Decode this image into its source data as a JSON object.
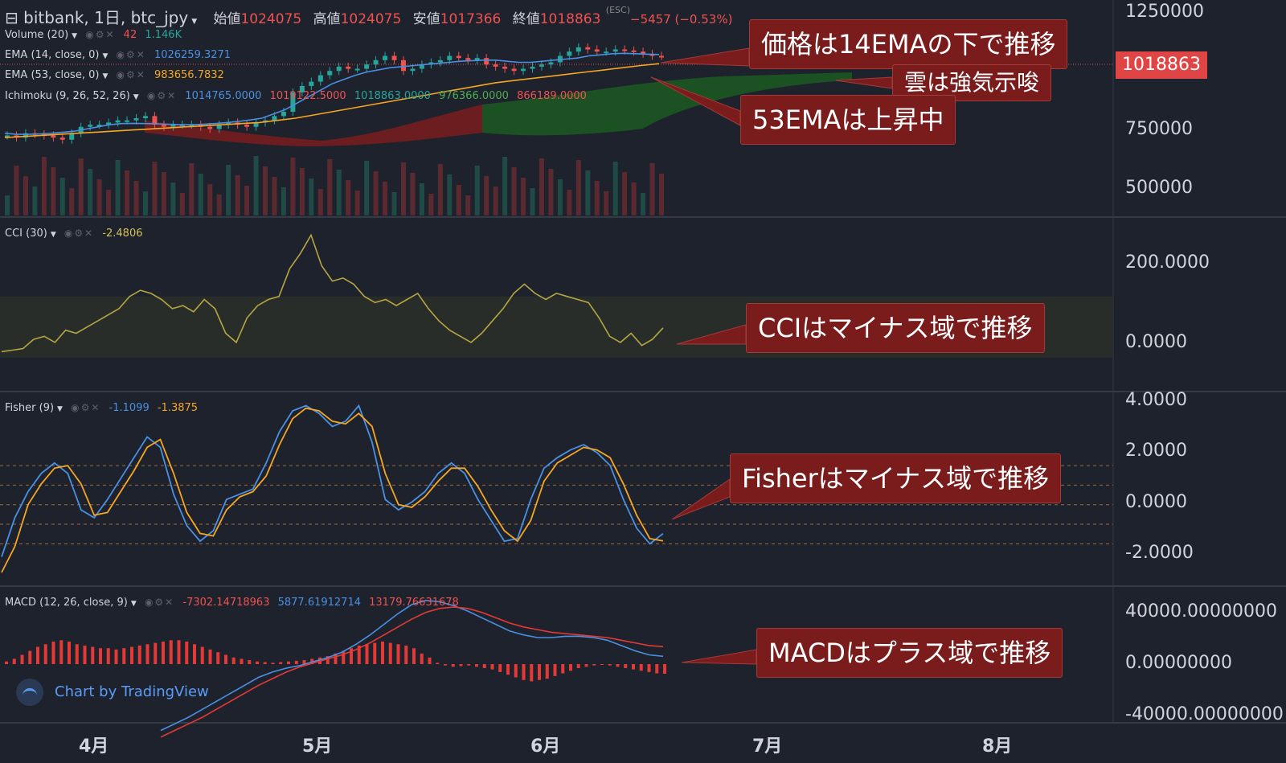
{
  "header": {
    "title": "bitbank, 1日, btc_jpy",
    "open_label": "始値",
    "open": "1024075",
    "high_label": "高値",
    "high": "1024075",
    "low_label": "安値",
    "low": "1017366",
    "close_label": "終値",
    "close": "1018863",
    "change": "−5457 (−0.53%)",
    "esc_hint": "(ESC)"
  },
  "legends": {
    "volume": {
      "name": "Volume (20)",
      "v1": "42",
      "v2": "1.146K"
    },
    "ema14": {
      "name": "EMA (14, close, 0)",
      "v1": "1026259.3271"
    },
    "ema53": {
      "name": "EMA (53, close, 0)",
      "v1": "983656.7832"
    },
    "ichimoku": {
      "name": "Ichimoku (9, 26, 52, 26)",
      "v1": "1014765.0000",
      "v2": "1019122.5000",
      "v3": "1018863.0000",
      "v4": "976366.0000",
      "v5": "866189.0000"
    },
    "cci": {
      "name": "CCI (30)",
      "v1": "-2.4806"
    },
    "fisher": {
      "name": "Fisher (9)",
      "v1": "-1.1099",
      "v2": "-1.3875"
    },
    "macd": {
      "name": "MACD (12, 26, close, 9)",
      "v1": "-7302.14718963",
      "v2": "5877.61912714",
      "v3": "13179.76631678"
    }
  },
  "price_tag": "1018863",
  "annotations": {
    "ema14": "価格は14EMAの下で推移",
    "cloud": "雲は強気示唆",
    "ema53": "53EMAは上昇中",
    "cci": "CCIはマイナス域で推移",
    "fisher": "Fisherはマイナス域で推移",
    "macd": "MACDはプラス域で推移"
  },
  "branding": "Chart by TradingView",
  "colors": {
    "up": "#26a69a",
    "down": "#ef5350",
    "ema14": "#4a90e2",
    "ema53": "#f5a623",
    "cci": "#b5a642",
    "fisher1": "#4a90e2",
    "fisher2": "#f5a623",
    "macd": "#4a90e2",
    "signal": "#e53935",
    "hist": "#e53935",
    "cloud_bull": "#1b5e20",
    "cloud_bear": "#7f1d1d"
  },
  "chart_data": [
    {
      "type": "line",
      "panel": "price",
      "ylim": [
        300000,
        1250000
      ],
      "yticks": [
        "1250000",
        "750000",
        "500000"
      ],
      "xticks": [
        "4月",
        "5月",
        "6月",
        "7月",
        "8月"
      ],
      "x_start": "2019-03-20",
      "x_end": "2019-06-25",
      "series": [
        {
          "key": "close",
          "values": [
            650000,
            640000,
            660000,
            655000,
            650000,
            640000,
            630000,
            660000,
            690000,
            700000,
            700000,
            710000,
            720000,
            720000,
            730000,
            740000,
            700000,
            690000,
            700000,
            700000,
            700000,
            690000,
            680000,
            700000,
            710000,
            700000,
            690000,
            710000,
            720000,
            740000,
            760000,
            850000,
            880000,
            900000,
            930000,
            950000,
            970000,
            960000,
            960000,
            980000,
            1000000,
            1020000,
            1000000,
            950000,
            960000,
            980000,
            990000,
            1000000,
            1020000,
            1010000,
            1000000,
            1010000,
            980000,
            970000,
            960000,
            950000,
            960000,
            970000,
            980000,
            990000,
            1020000,
            1040000,
            1060000,
            1050000,
            1040000,
            1040000,
            1050000,
            1045000,
            1040000,
            1030000,
            1020000,
            1018863
          ]
        },
        {
          "key": "ema14",
          "name": "EMA (14, close, 0)",
          "values": [
            660000,
            655000,
            655000,
            657000,
            660000,
            665000,
            670000,
            680000,
            690000,
            700000,
            705000,
            706000,
            705000,
            704000,
            702000,
            700000,
            700000,
            702000,
            705000,
            710000,
            715000,
            722000,
            730000,
            750000,
            770000,
            800000,
            830000,
            860000,
            890000,
            910000,
            930000,
            945000,
            955000,
            965000,
            970000,
            975000,
            980000,
            985000,
            990000,
            995000,
            998000,
            1000000,
            1000000,
            995000,
            990000,
            990000,
            995000,
            1000000,
            1005000,
            1010000,
            1020000,
            1025000,
            1030000,
            1032000,
            1030000,
            1028000,
            1026259
          ]
        },
        {
          "key": "ema53",
          "name": "EMA (53, close, 0)",
          "values": [
            640000,
            645000,
            650000,
            655000,
            660000,
            665000,
            670000,
            675000,
            680000,
            685000,
            690000,
            695000,
            700000,
            705000,
            710000,
            720000,
            730000,
            745000,
            760000,
            775000,
            790000,
            805000,
            820000,
            835000,
            850000,
            865000,
            880000,
            895000,
            905000,
            915000,
            925000,
            935000,
            945000,
            955000,
            965000,
            975000,
            983656
          ]
        }
      ]
    },
    {
      "type": "line",
      "panel": "cci",
      "ylim": [
        -100,
        280
      ],
      "yticks": [
        "200.0000",
        "0.0000"
      ],
      "band": [
        -100,
        100
      ],
      "series": [
        {
          "key": "cci",
          "name": "CCI (30)",
          "values": [
            -80,
            -75,
            -70,
            -40,
            -30,
            -50,
            -10,
            -20,
            0,
            20,
            40,
            60,
            100,
            120,
            110,
            90,
            60,
            70,
            50,
            90,
            60,
            -20,
            -50,
            30,
            70,
            90,
            100,
            190,
            240,
            300,
            200,
            150,
            160,
            140,
            100,
            80,
            90,
            70,
            90,
            110,
            60,
            20,
            -10,
            -30,
            -50,
            -20,
            20,
            60,
            110,
            140,
            110,
            90,
            110,
            100,
            90,
            80,
            30,
            -30,
            -50,
            -20,
            -60,
            -40,
            -2.48
          ]
        }
      ]
    },
    {
      "type": "line",
      "panel": "fisher",
      "ylim": [
        -3,
        4
      ],
      "yticks": [
        "4.0000",
        "2.0000",
        "0.0000",
        "-2.0000"
      ],
      "levels": [
        1.5,
        0.75,
        0,
        -0.75,
        -1.5
      ],
      "series": [
        {
          "key": "fisher",
          "name": "Fisher",
          "values": [
            -2.0,
            -0.5,
            0.5,
            1.2,
            1.6,
            1.2,
            -0.2,
            -0.5,
            0.2,
            1.0,
            1.8,
            2.6,
            2.2,
            0.4,
            -0.8,
            -1.4,
            -1.0,
            0.2,
            0.4,
            0.6,
            1.6,
            2.8,
            3.6,
            3.8,
            3.5,
            3.0,
            3.2,
            3.8,
            2.4,
            0.2,
            -0.2,
            0.1,
            0.5,
            1.2,
            1.6,
            1.2,
            0.2,
            -0.6,
            -1.4,
            -1.3,
            0.2,
            1.4,
            1.8,
            2.1,
            2.3,
            2.0,
            1.5,
            0.2,
            -0.9,
            -1.5,
            -1.1099
          ]
        },
        {
          "key": "trigger",
          "name": "Trigger",
          "values": [
            -2.6,
            -1.6,
            0.0,
            0.8,
            1.4,
            1.5,
            0.8,
            -0.4,
            -0.3,
            0.5,
            1.3,
            2.2,
            2.5,
            1.2,
            -0.3,
            -1.1,
            -1.2,
            -0.2,
            0.3,
            0.5,
            1.1,
            2.3,
            3.3,
            3.7,
            3.6,
            3.2,
            3.1,
            3.5,
            3.0,
            1.2,
            0.0,
            -0.1,
            0.3,
            0.9,
            1.4,
            1.4,
            0.7,
            -0.2,
            -1.0,
            -1.4,
            -0.6,
            0.9,
            1.6,
            1.9,
            2.2,
            2.1,
            1.8,
            0.8,
            -0.4,
            -1.3,
            -1.3875
          ]
        }
      ]
    },
    {
      "type": "bar",
      "panel": "macd",
      "ylim": [
        -40000,
        40000
      ],
      "yticks": [
        "40000.00000000",
        "0.00000000",
        "-40000.00000000"
      ],
      "series": [
        {
          "key": "hist",
          "name": "Histogram",
          "values": [
            2000,
            4000,
            7000,
            10000,
            13000,
            15000,
            17000,
            18000,
            17000,
            15000,
            14000,
            13000,
            12000,
            12000,
            11000,
            12000,
            13000,
            14000,
            15000,
            16000,
            17000,
            18000,
            18000,
            17000,
            15000,
            13000,
            11000,
            9000,
            7000,
            5000,
            4000,
            3000,
            2000,
            1500,
            1000,
            1500,
            2000,
            2500,
            3000,
            4000,
            5000,
            6000,
            8000,
            10000,
            12000,
            14000,
            15000,
            16000,
            17000,
            16000,
            15000,
            14000,
            12000,
            8000,
            5000,
            1000,
            -1000,
            -2000,
            -1500,
            -1000,
            -2000,
            -3000,
            -4000,
            -6000,
            -8000,
            -10000,
            -12000,
            -13000,
            -12000,
            -11000,
            -9000,
            -7000,
            -5000,
            -3000,
            -2000,
            -1000,
            -500,
            -1000,
            -2000,
            -3000,
            -4000,
            -5000,
            -6000,
            -7000,
            -7302
          ]
        },
        {
          "key": "macd",
          "name": "MACD",
          "values": [
            -50000,
            -45000,
            -40000,
            -34000,
            -28000,
            -22000,
            -16000,
            -10000,
            -6000,
            -3000,
            -1000,
            2000,
            5000,
            9000,
            15000,
            22000,
            30000,
            38000,
            45000,
            48000,
            47000,
            44000,
            40000,
            35000,
            30000,
            25000,
            22000,
            20000,
            20000,
            21000,
            21000,
            20000,
            18000,
            14000,
            10000,
            7000,
            5877
          ]
        },
        {
          "key": "signal",
          "name": "Signal",
          "values": [
            -55000,
            -50000,
            -45000,
            -40000,
            -34000,
            -28000,
            -22000,
            -16000,
            -11000,
            -6000,
            -2000,
            1000,
            4000,
            7000,
            11000,
            16000,
            22000,
            28000,
            34000,
            39000,
            42000,
            43000,
            42000,
            39000,
            35000,
            31000,
            28000,
            26000,
            24000,
            23000,
            22000,
            21000,
            20000,
            18000,
            16000,
            14000,
            13179
          ]
        }
      ]
    }
  ]
}
